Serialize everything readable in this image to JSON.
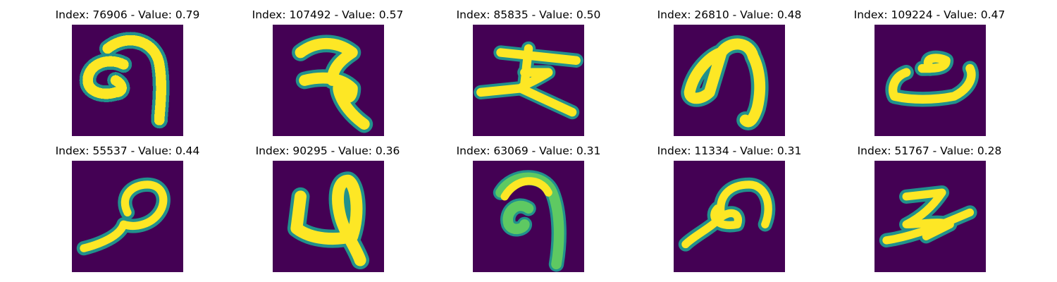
{
  "figure": {
    "panels": [
      {
        "title": "Index: 76906 - Value: 0.79",
        "glyph": "glyph-a"
      },
      {
        "title": "Index: 107492 - Value: 0.57",
        "glyph": "glyph-b"
      },
      {
        "title": "Index: 85835 - Value: 0.50",
        "glyph": "glyph-c"
      },
      {
        "title": "Index: 26810 - Value: 0.48",
        "glyph": "glyph-d"
      },
      {
        "title": "Index: 109224 - Value: 0.47",
        "glyph": "glyph-e"
      },
      {
        "title": "Index: 55537 - Value: 0.44",
        "glyph": "glyph-f"
      },
      {
        "title": "Index: 90295 - Value: 0.36",
        "glyph": "glyph-g"
      },
      {
        "title": "Index: 63069 - Value: 0.31",
        "glyph": "glyph-h"
      },
      {
        "title": "Index: 11334 - Value: 0.31",
        "glyph": "glyph-i"
      },
      {
        "title": "Index: 51767 - Value: 0.28",
        "glyph": "glyph-j"
      }
    ],
    "colors": {
      "background": "#440154",
      "stroke_core": "#fde725",
      "stroke_edge": "#21918c",
      "stroke_mid": "#5ec962"
    }
  }
}
